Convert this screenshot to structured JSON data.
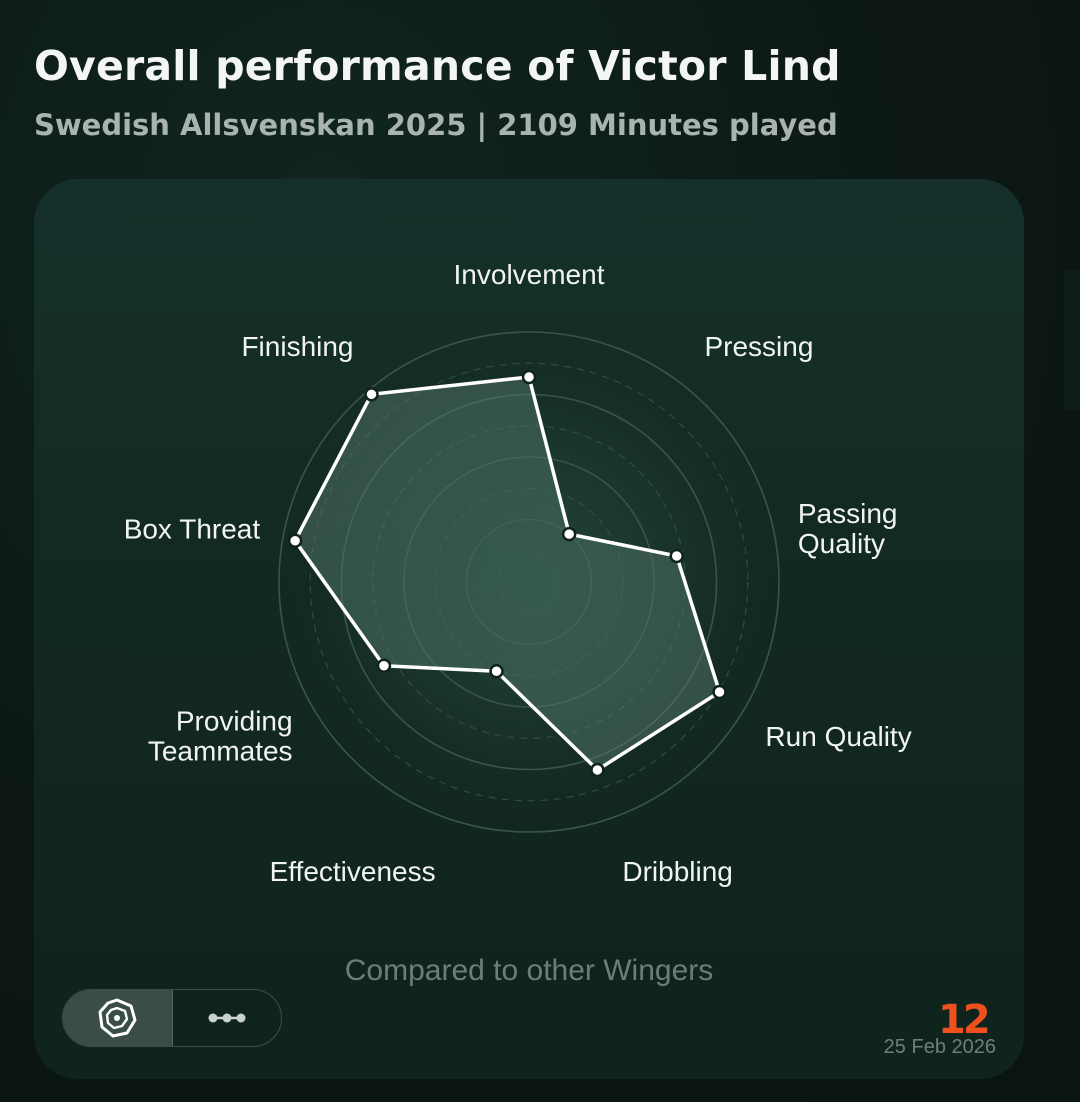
{
  "header": {
    "title": "Overall performance of Victor Lind",
    "subtitle": "Swedish Allsvenskan 2025 | 2109 Minutes played"
  },
  "chart_data": {
    "type": "radar",
    "categories": [
      "Involvement",
      "Pressing",
      "Passing Quality",
      "Run Quality",
      "Dribbling",
      "Effectiveness",
      "Providing Teammates",
      "Box Threat",
      "Finishing"
    ],
    "series": [
      {
        "values": [
          82,
          25,
          60,
          88,
          80,
          38,
          67,
          95,
          98
        ]
      }
    ],
    "rlim": [
      0,
      100
    ],
    "rings": 4,
    "colors": {
      "line": "#ffffff",
      "fill": "#5b7f70",
      "ring": "#3a544c"
    }
  },
  "footer": {
    "compare_text": "Compared to other Wingers",
    "brand": "12",
    "date": "25 Feb 2026",
    "toggle": {
      "options": [
        "radar-icon",
        "dots-icon"
      ],
      "selected": "radar-icon"
    }
  }
}
